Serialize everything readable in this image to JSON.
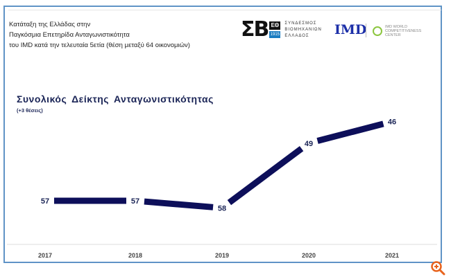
{
  "header": {
    "subtitle_lines": [
      "Κατάταξη της Ελλάδας στην",
      "Παγκόσμια Επετηρίδα Ανταγωνιστικότητα",
      "του IMD κατά την τελευταία 5ετία (θέση μεταξύ 64 οικονομιών)"
    ],
    "logos": {
      "sebe_mark": "ΣΒ",
      "sebe_eo": "ΕΘ",
      "sebe_year": "1915",
      "sebe_text": [
        "ΣΥΝΔΕΣΜΟΣ",
        "ΒΙΟΜΗΧΑΝΙΩΝ",
        "ΕΛΛΑΔΟΣ"
      ],
      "imd": "IMD",
      "wcc_text": [
        "IMD WORLD",
        "COMPETITIVENESS",
        "CENTER"
      ]
    }
  },
  "chart_data": {
    "type": "line",
    "title": "Συνολικός  Δείκτης  Ανταγωνιστικότητας",
    "subtitle": "(+3 θέσεις)",
    "categories": [
      "2017",
      "2018",
      "2019",
      "2020",
      "2021"
    ],
    "values": [
      57,
      57,
      58,
      49,
      46
    ],
    "data_labels": [
      "57",
      "57",
      "58",
      "49",
      "46"
    ],
    "xlabel": "",
    "ylabel": "",
    "y_inverted": true,
    "ylim": [
      46,
      58
    ],
    "grid": false,
    "line_color": "#0d0f5a"
  },
  "colors": {
    "frame": "#5f93c6",
    "zoom_icon": "#e8641e"
  }
}
